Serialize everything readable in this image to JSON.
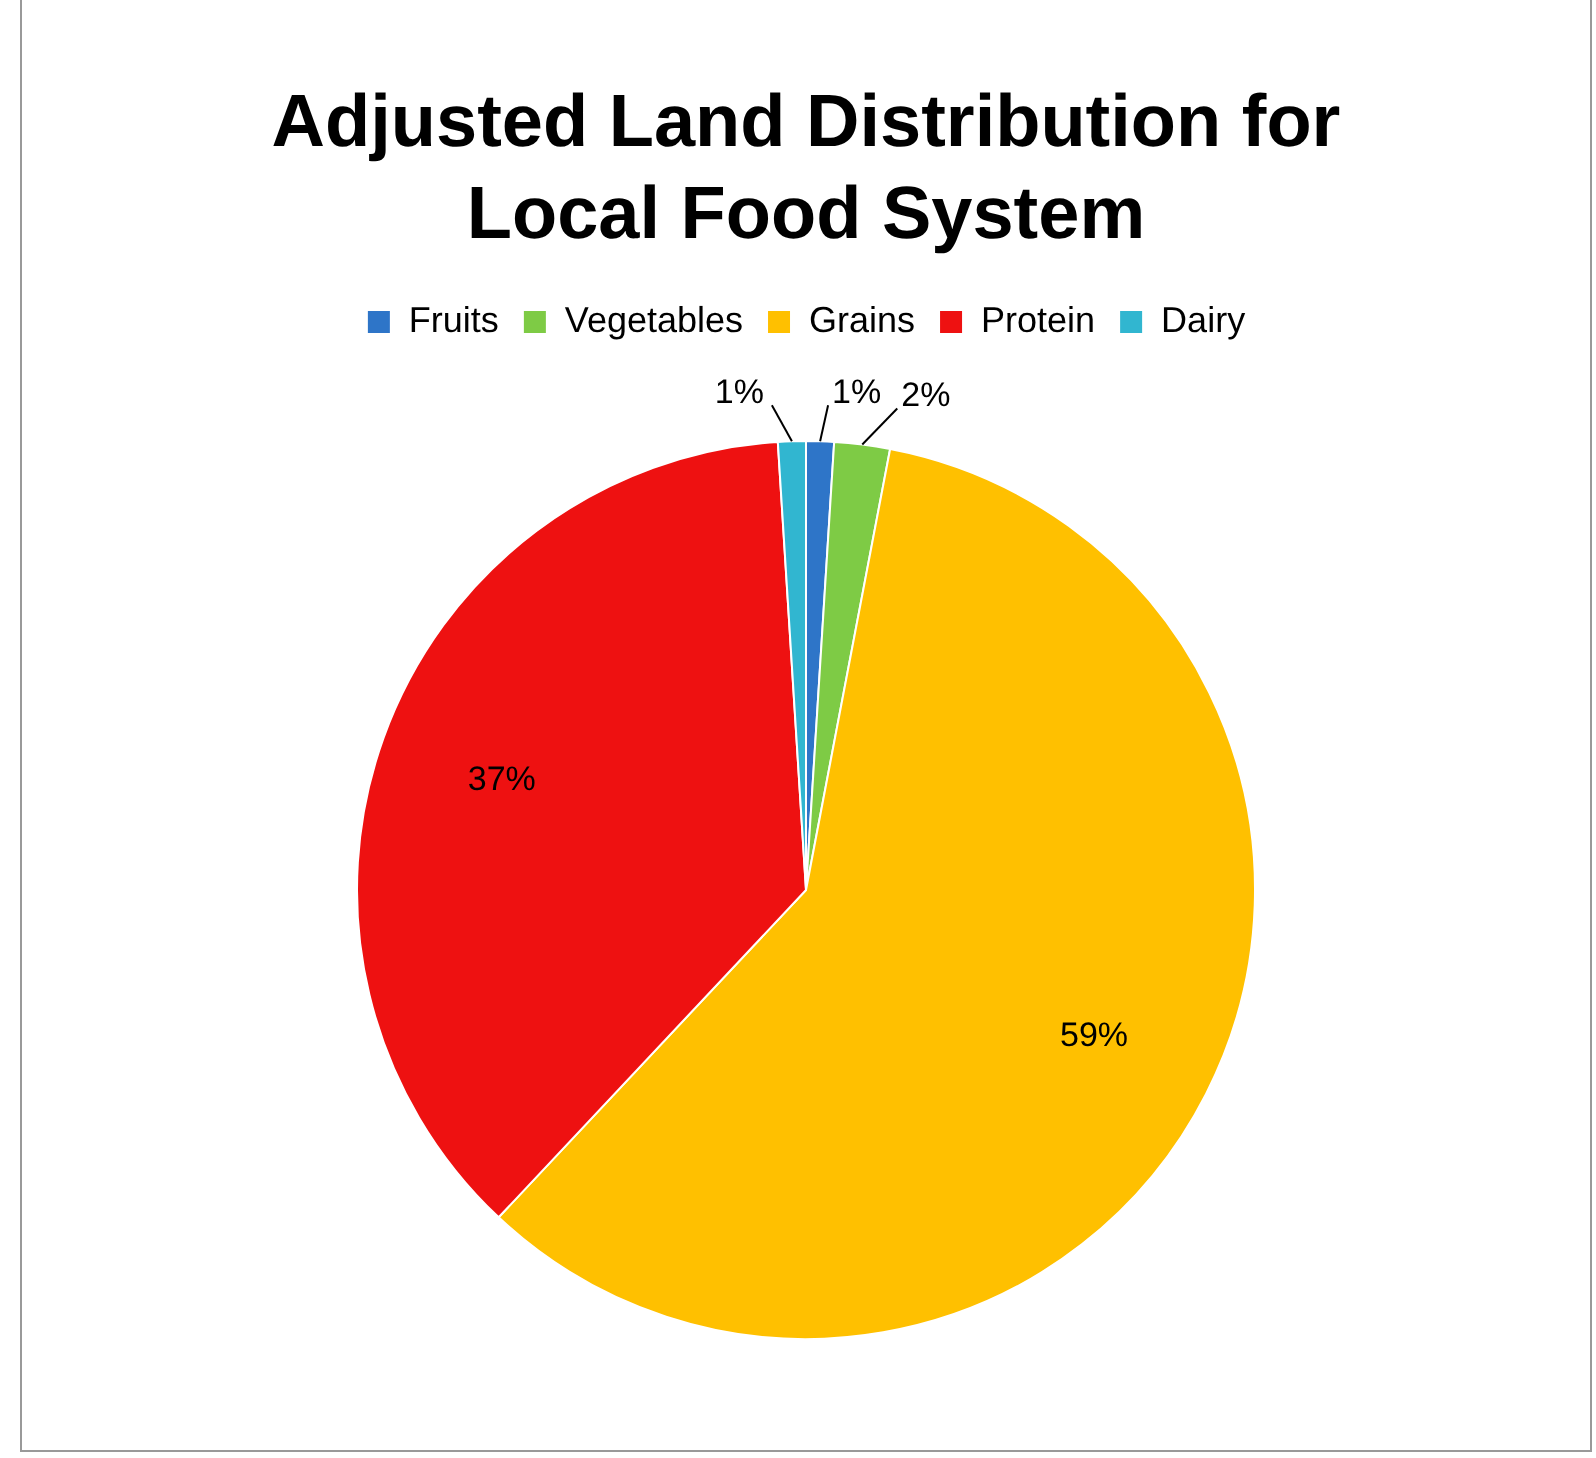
{
  "chart_data": {
    "type": "pie",
    "title": "Adjusted Land Distribution for Local Food System",
    "categories": [
      "Fruits",
      "Vegetables",
      "Grains",
      "Protein",
      "Dairy"
    ],
    "values": [
      1,
      2,
      59,
      37,
      1
    ],
    "colors": [
      "#2e75c8",
      "#7ecb45",
      "#ffc000",
      "#ee1111",
      "#31b6d0"
    ],
    "value_labels": [
      "1%",
      "2%",
      "59%",
      "37%",
      "1%"
    ],
    "legend": "top"
  }
}
